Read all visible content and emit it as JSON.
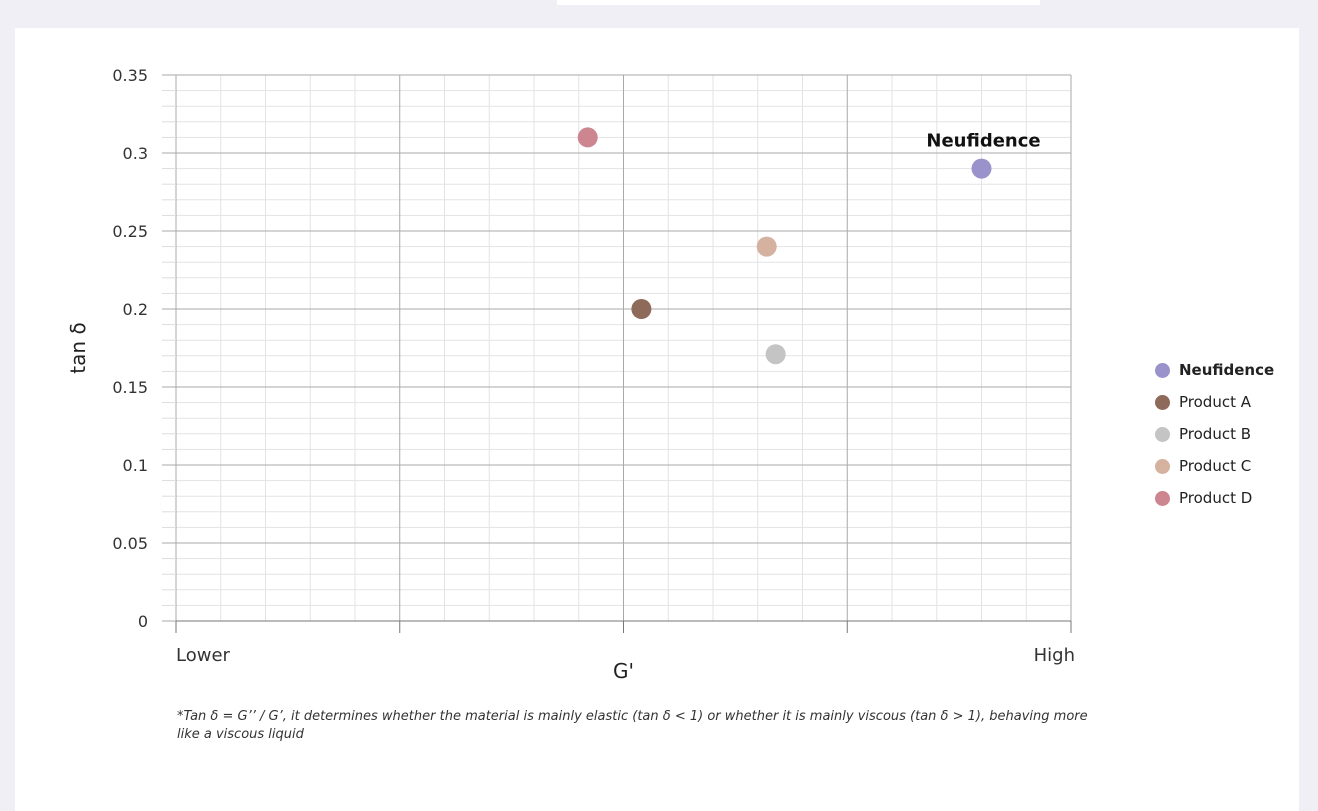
{
  "chart_data": {
    "type": "scatter",
    "xlabel": "G'",
    "ylabel": "tan δ",
    "x_axis_end_labels": [
      "Lower",
      "High"
    ],
    "xlim": [
      0,
      1
    ],
    "ylim": [
      0,
      0.35
    ],
    "y_ticks": [
      "0",
      "0.05",
      "0.1",
      "0.15",
      "0.2",
      "0.25",
      "0.3",
      "0.35"
    ],
    "grid": true,
    "legend_position": "right",
    "series": [
      {
        "name": "Neufidence",
        "color": "#9a93cb",
        "x": 0.9,
        "y": 0.29,
        "label": "Neufidence"
      },
      {
        "name": "Product A",
        "color": "#8e6a5a",
        "x": 0.52,
        "y": 0.2
      },
      {
        "name": "Product B",
        "color": "#c4c4c4",
        "x": 0.67,
        "y": 0.171
      },
      {
        "name": "Product C",
        "color": "#d5b19f",
        "x": 0.66,
        "y": 0.24
      },
      {
        "name": "Product D",
        "color": "#cd8690",
        "x": 0.46,
        "y": 0.31
      }
    ]
  },
  "footnote": "*Tan δ = G’’ / G’, it determines whether the material is mainly elastic (tan δ < 1) or whether it is mainly viscous (tan δ > 1), behaving more like a viscous liquid"
}
